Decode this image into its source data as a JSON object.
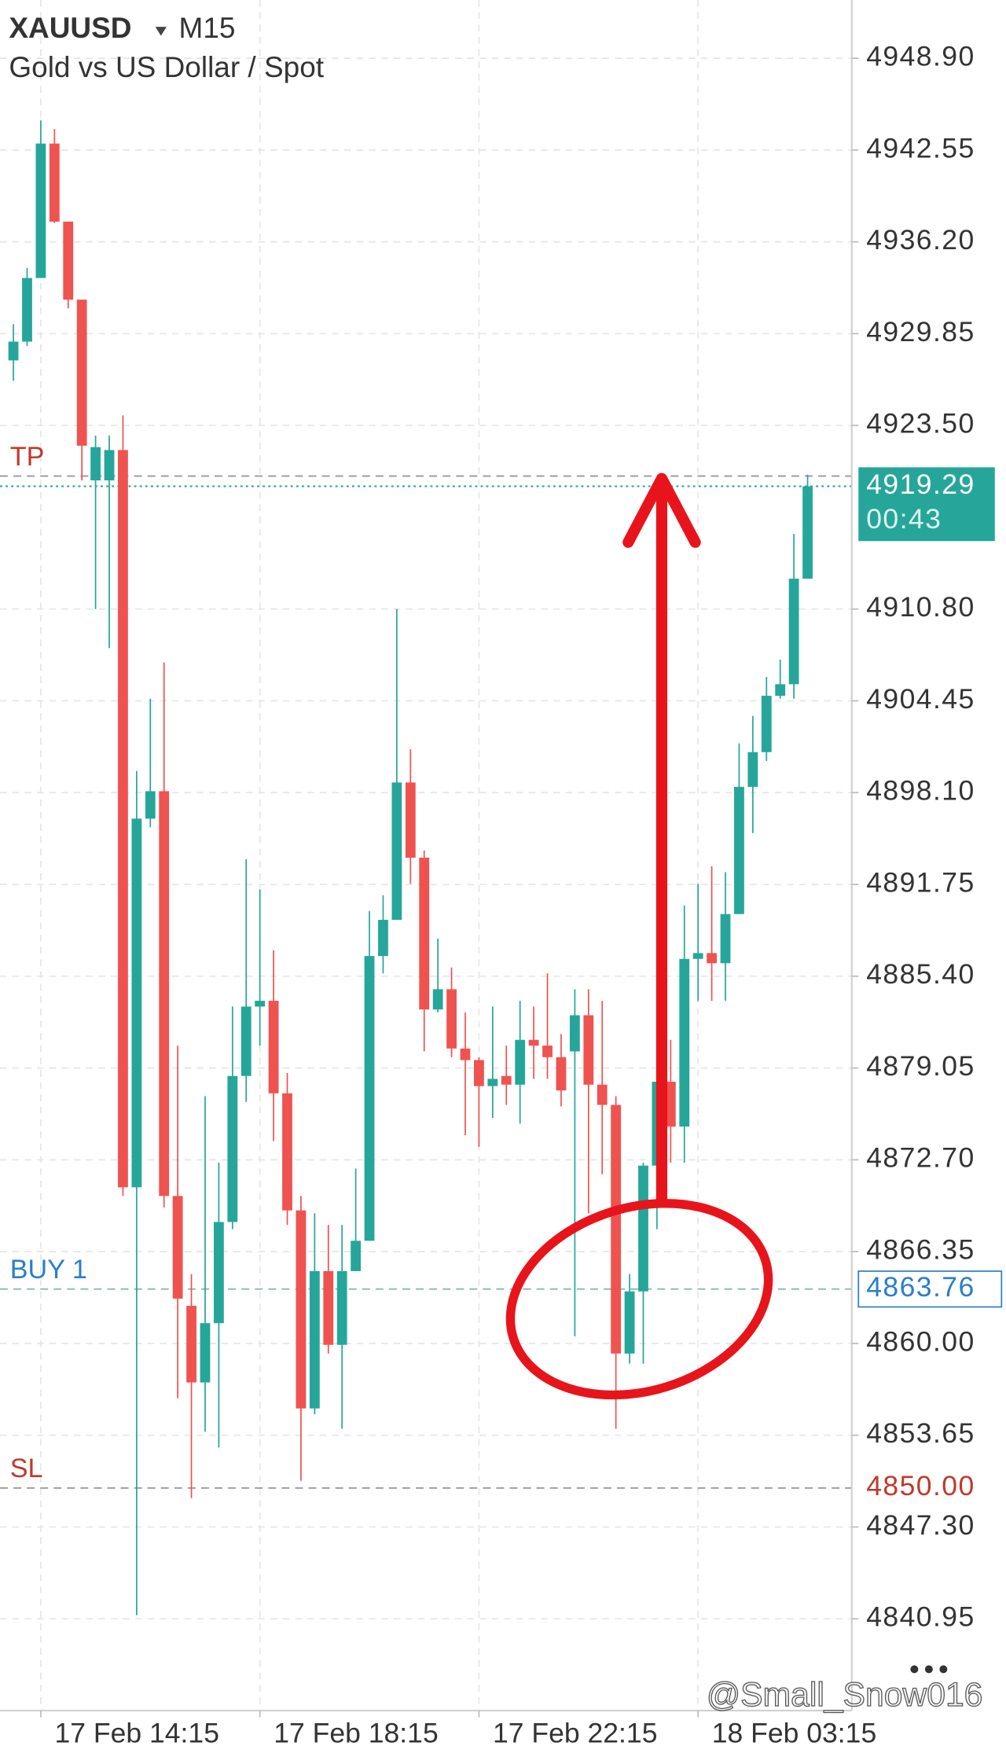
{
  "chart_data": {
    "type": "candlestick",
    "symbol": "XAUUSD",
    "timeframe": "M15",
    "subtitle": "Gold vs US Dollar / Spot",
    "categories": [
      null,
      null,
      "17 Feb 14:15",
      null,
      null,
      null,
      null,
      null,
      null,
      null,
      null,
      null,
      null,
      null,
      null,
      null,
      null,
      null,
      "17 Feb 18:15",
      null,
      null,
      null,
      null,
      null,
      null,
      null,
      null,
      null,
      null,
      null,
      null,
      null,
      null,
      null,
      "17 Feb 22:15",
      null,
      null,
      null,
      null,
      null,
      null,
      null,
      null,
      null,
      null,
      null,
      null,
      null,
      null,
      null,
      "18 Feb 03:15",
      null,
      null,
      null,
      null,
      null,
      null,
      null,
      null
    ],
    "open": [
      4928.0,
      4929.3,
      4933.7,
      4943.0,
      4937.6,
      4932.2,
      4919.7,
      4919.7,
      4921.8,
      4870.8,
      4896.3,
      4898.2,
      4870.2,
      4862.6,
      4857.3,
      4861.4,
      4868.4,
      4878.5,
      4883.3,
      4883.7,
      4877.3,
      4869.2,
      4855.5,
      4865.0,
      4859.9,
      4865.0,
      4867.1,
      4886.8,
      4889.3,
      4898.8,
      4893.6,
      4883.1,
      4884.5,
      4880.4,
      4879.6,
      4877.8,
      4878.5,
      4877.9,
      4881.0,
      4880.6,
      4879.8,
      4880.2,
      4882.7,
      4877.9,
      4876.5,
      4859.3,
      4863.6,
      4872.3,
      4878.1,
      4875.0,
      4886.6,
      4887.0,
      4886.3,
      4889.7,
      4898.5,
      4900.9,
      4904.8,
      4905.6,
      4912.9
    ],
    "high": [
      4930.5,
      4934.4,
      4944.6,
      4944.0,
      4937.6,
      4932.2,
      4922.8,
      4922.8,
      4924.2,
      4899.6,
      4904.6,
      4907.1,
      4880.6,
      4864.8,
      4877.1,
      4872.5,
      4883.3,
      4893.5,
      4891.4,
      4887.2,
      4878.7,
      4870.2,
      4869.0,
      4868.2,
      4868.2,
      4872.1,
      4889.9,
      4891.0,
      4910.8,
      4901.1,
      4894.1,
      4888.0,
      4886.0,
      4882.9,
      4879.8,
      4883.3,
      4880.6,
      4883.7,
      4883.3,
      4885.6,
      4881.4,
      4884.5,
      4884.5,
      4883.7,
      4877.1,
      4864.8,
      4872.5,
      4878.7,
      4881.0,
      4890.3,
      4891.8,
      4893.0,
      4892.6,
      4901.5,
      4903.4,
      4906.1,
      4907.3,
      4916.0,
      4920.1
    ],
    "low": [
      4926.6,
      4929.0,
      4933.7,
      4937.5,
      4931.6,
      4919.7,
      4910.8,
      4908.1,
      4870.2,
      4841.2,
      4895.7,
      4869.4,
      4856.2,
      4849.3,
      4853.9,
      4852.8,
      4867.9,
      4876.7,
      4880.6,
      4874.0,
      4868.2,
      4850.5,
      4855.1,
      4859.3,
      4854.1,
      4865.0,
      4867.1,
      4885.6,
      4889.3,
      4891.8,
      4880.2,
      4882.9,
      4879.8,
      4874.4,
      4873.6,
      4875.6,
      4876.5,
      4875.2,
      4878.3,
      4878.3,
      4876.4,
      4860.5,
      4869.0,
      4871.7,
      4854.1,
      4858.6,
      4858.6,
      4867.9,
      4872.5,
      4872.5,
      4883.7,
      4883.7,
      4883.7,
      4889.7,
      4895.3,
      4900.3,
      4904.6,
      4904.6,
      4912.9
    ],
    "close": [
      4929.3,
      4933.7,
      4943.0,
      4937.6,
      4932.2,
      4922.1,
      4922.0,
      4921.8,
      4870.8,
      4896.3,
      4898.2,
      4870.2,
      4863.1,
      4857.3,
      4861.4,
      4868.4,
      4878.5,
      4883.3,
      4883.7,
      4877.3,
      4869.2,
      4855.5,
      4865.0,
      4859.9,
      4865.0,
      4867.1,
      4886.8,
      4889.3,
      4898.8,
      4893.6,
      4883.1,
      4884.5,
      4880.4,
      4879.6,
      4877.8,
      4878.3,
      4877.9,
      4881.0,
      4880.6,
      4879.8,
      4877.5,
      4882.7,
      4877.9,
      4876.5,
      4859.3,
      4863.6,
      4872.3,
      4878.1,
      4875.0,
      4886.6,
      4887.0,
      4886.3,
      4889.7,
      4898.5,
      4900.9,
      4904.8,
      4905.6,
      4912.9,
      4919.29
    ],
    "up_color": "#26a69a",
    "down_color": "#ef5350",
    "ylim": [
      4834.6,
      4952.93
    ],
    "yticks": [
      {
        "value": 4948.9,
        "label": "4948.90"
      },
      4942.55,
      {
        "value": 4936.2,
        "label": "4936.20"
      },
      4929.85,
      {
        "value": 4923.5,
        "label": "4923.50"
      },
      {
        "value": 4910.8,
        "label": "4910.80"
      },
      4904.45,
      {
        "value": 4898.1,
        "label": "4898.10"
      },
      4891.75,
      {
        "value": 4885.4,
        "label": "4885.40"
      },
      4879.05,
      {
        "value": 4872.7,
        "label": "4872.70"
      },
      4866.35,
      {
        "value": 4860,
        "label": "4860.00"
      },
      4853.65,
      {
        "value": 4847.3,
        "label": "4847.30"
      },
      4840.95
    ],
    "grid": true,
    "levels": [
      {
        "name": "TP",
        "value": 4920,
        "color": "#c0392b"
      },
      {
        "name": "BUY 1",
        "value": 4863.76,
        "label": "4863.76",
        "color": "#2a7fc9"
      },
      {
        "name": "SL",
        "value": 4850,
        "label": "4850.00",
        "color": "#c0392b"
      }
    ],
    "current": {
      "value": 4919.29,
      "label": "4919.29",
      "countdown": "00:43",
      "color": "#26a69a"
    },
    "watermark": "@Small_Snow016"
  }
}
